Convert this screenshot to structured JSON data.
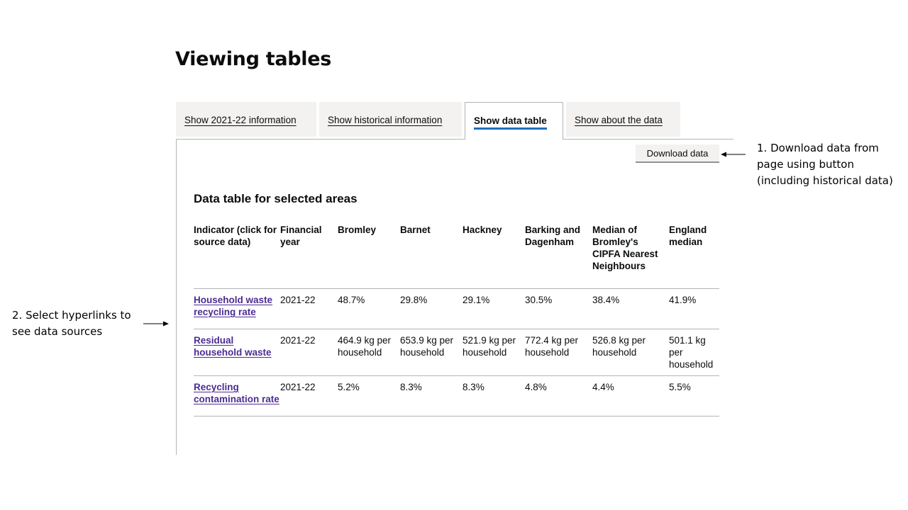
{
  "slide": {
    "title": "Viewing tables"
  },
  "tabs": [
    {
      "label": "Show 2021-22 information",
      "active": false
    },
    {
      "label": "Show historical information",
      "active": false
    },
    {
      "label": "Show data table",
      "active": true
    },
    {
      "label": "Show about the data",
      "active": false
    }
  ],
  "toolbar": {
    "download_label": "Download data"
  },
  "table": {
    "title": "Data table for selected areas",
    "headers": [
      "Indicator (click for source data)",
      "Financial year",
      "Bromley",
      "Barnet",
      "Hackney",
      "Barking and Dagenham",
      "Median of Bromley's CIPFA Nearest Neighbours",
      "England median"
    ],
    "rows": [
      {
        "indicator": "Household waste recycling rate",
        "year": "2021-22",
        "values": [
          "48.7%",
          "29.8%",
          "29.1%",
          "30.5%",
          "38.4%",
          "41.9%"
        ]
      },
      {
        "indicator": "Residual household waste",
        "year": "2021-22",
        "values": [
          "464.9 kg per household",
          "653.9 kg per household",
          "521.9 kg per household",
          "772.4 kg per household",
          "526.8 kg per household",
          "501.1 kg per household"
        ]
      },
      {
        "indicator": "Recycling contamination rate",
        "year": "2021-22",
        "values": [
          "5.2%",
          "8.3%",
          "8.3%",
          "4.8%",
          "4.4%",
          "5.5%"
        ]
      }
    ]
  },
  "annotations": {
    "download": "1. Download data from page using button (including historical data)",
    "hyperlinks": "2. Select hyperlinks to see data sources"
  },
  "colors": {
    "active_tab_underline": "#1d70b8",
    "link": "#4c2c92",
    "tab_background": "#f3f2f1",
    "border": "#b1b4b6"
  },
  "icons": [
    "arrow-left-icon",
    "arrow-right-icon"
  ]
}
